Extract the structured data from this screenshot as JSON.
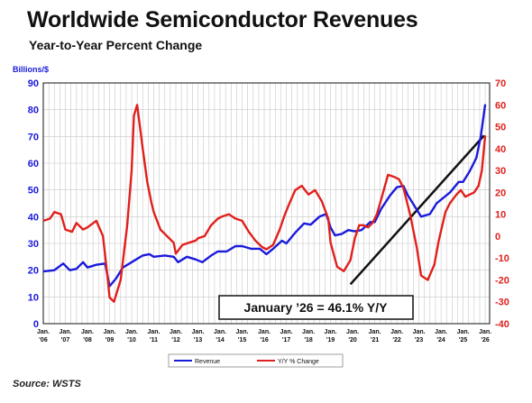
{
  "title": "Worldwide Semiconductor Revenues",
  "subtitle": "Year-to-Year Percent Change",
  "source": "Source: WSTS",
  "chart_data": {
    "type": "line",
    "left_axis_label": "Billions/$",
    "left_ylim": [
      0,
      90
    ],
    "left_ticks": [
      "0",
      "10",
      "20",
      "30",
      "40",
      "50",
      "60",
      "70",
      "80",
      "90"
    ],
    "right_ylim": [
      -40,
      70
    ],
    "right_ticks": [
      "-40",
      "-30",
      "-20",
      "-10",
      "0",
      "10",
      "20",
      "30",
      "40",
      "50",
      "60",
      "70"
    ],
    "x_ticks": [
      {
        "t": 2006.0,
        "l1": "Jan.",
        "l2": "'06"
      },
      {
        "t": 2007.0,
        "l1": "Jan.",
        "l2": "'07"
      },
      {
        "t": 2008.0,
        "l1": "Jan.",
        "l2": "'08"
      },
      {
        "t": 2009.0,
        "l1": "Jan.",
        "l2": "'09"
      },
      {
        "t": 2010.0,
        "l1": "Jan.",
        "l2": "'10"
      },
      {
        "t": 2011.0,
        "l1": "Jan.",
        "l2": "'11"
      },
      {
        "t": 2012.0,
        "l1": "Jan.",
        "l2": "'12"
      },
      {
        "t": 2013.0,
        "l1": "Jan.",
        "l2": "'13"
      },
      {
        "t": 2014.0,
        "l1": "Jan.",
        "l2": "'14"
      },
      {
        "t": 2015.0,
        "l1": "Jan.",
        "l2": "'15"
      },
      {
        "t": 2016.0,
        "l1": "Jan.",
        "l2": "'16"
      },
      {
        "t": 2017.0,
        "l1": "Jan.",
        "l2": "'17"
      },
      {
        "t": 2018.0,
        "l1": "Jan.",
        "l2": "'18"
      },
      {
        "t": 2019.0,
        "l1": "Jan.",
        "l2": "'19"
      },
      {
        "t": 2020.0,
        "l1": "Jan.",
        "l2": "'20"
      },
      {
        "t": 2021.0,
        "l1": "Jan.",
        "l2": "'21"
      },
      {
        "t": 2022.0,
        "l1": "Jan.",
        "l2": "'22"
      },
      {
        "t": 2023.0,
        "l1": "Jan.",
        "l2": "'23"
      },
      {
        "t": 2024.0,
        "l1": "Jan.",
        "l2": "'24"
      },
      {
        "t": 2025.0,
        "l1": "Jan.",
        "l2": "'25"
      },
      {
        "t": 2026.0,
        "l1": "Jan.",
        "l2": "'26"
      }
    ],
    "series": [
      {
        "name": "Revenue",
        "axis": "left",
        "color": "#1a1adb",
        "points": [
          [
            2006.0,
            19.5
          ],
          [
            2006.5,
            20
          ],
          [
            2006.9,
            22.5
          ],
          [
            2007.2,
            20
          ],
          [
            2007.5,
            20.5
          ],
          [
            2007.8,
            23
          ],
          [
            2008.0,
            21
          ],
          [
            2008.4,
            22
          ],
          [
            2008.8,
            22.5
          ],
          [
            2009.0,
            14
          ],
          [
            2009.3,
            17
          ],
          [
            2009.6,
            21
          ],
          [
            2009.9,
            22.5
          ],
          [
            2010.2,
            24
          ],
          [
            2010.5,
            25.5
          ],
          [
            2010.8,
            26
          ],
          [
            2011.0,
            25
          ],
          [
            2011.5,
            25.5
          ],
          [
            2011.9,
            25
          ],
          [
            2012.1,
            23
          ],
          [
            2012.5,
            25
          ],
          [
            2012.9,
            24
          ],
          [
            2013.2,
            23
          ],
          [
            2013.6,
            25.5
          ],
          [
            2013.9,
            27
          ],
          [
            2014.3,
            27
          ],
          [
            2014.7,
            29
          ],
          [
            2015.0,
            29
          ],
          [
            2015.4,
            28
          ],
          [
            2015.8,
            28
          ],
          [
            2016.1,
            26
          ],
          [
            2016.4,
            28
          ],
          [
            2016.8,
            31
          ],
          [
            2017.0,
            30
          ],
          [
            2017.4,
            34
          ],
          [
            2017.8,
            37.5
          ],
          [
            2018.1,
            37
          ],
          [
            2018.5,
            40
          ],
          [
            2018.8,
            41
          ],
          [
            2019.0,
            36
          ],
          [
            2019.2,
            33
          ],
          [
            2019.5,
            33.5
          ],
          [
            2019.8,
            35
          ],
          [
            2020.1,
            34.5
          ],
          [
            2020.4,
            35
          ],
          [
            2020.8,
            38
          ],
          [
            2021.0,
            38
          ],
          [
            2021.3,
            43
          ],
          [
            2021.7,
            48
          ],
          [
            2022.0,
            51
          ],
          [
            2022.3,
            51.5
          ],
          [
            2022.5,
            48
          ],
          [
            2022.8,
            44
          ],
          [
            2023.1,
            40
          ],
          [
            2023.5,
            41
          ],
          [
            2023.8,
            45
          ],
          [
            2024.1,
            47
          ],
          [
            2024.4,
            49
          ],
          [
            2024.8,
            53
          ],
          [
            2025.0,
            53
          ],
          [
            2025.3,
            57
          ],
          [
            2025.6,
            62
          ],
          [
            2025.8,
            70
          ],
          [
            2026.0,
            82
          ]
        ]
      },
      {
        "name": "Y/Y % Change",
        "axis": "right",
        "color": "#e0201c",
        "points": [
          [
            2006.0,
            7
          ],
          [
            2006.3,
            8
          ],
          [
            2006.5,
            11
          ],
          [
            2006.8,
            10
          ],
          [
            2007.0,
            3
          ],
          [
            2007.3,
            2
          ],
          [
            2007.5,
            6
          ],
          [
            2007.8,
            3
          ],
          [
            2008.0,
            4
          ],
          [
            2008.4,
            7
          ],
          [
            2008.7,
            0
          ],
          [
            2008.9,
            -18
          ],
          [
            2009.0,
            -28
          ],
          [
            2009.2,
            -30
          ],
          [
            2009.5,
            -20
          ],
          [
            2009.8,
            5
          ],
          [
            2010.0,
            30
          ],
          [
            2010.1,
            55
          ],
          [
            2010.25,
            60
          ],
          [
            2010.5,
            40
          ],
          [
            2010.7,
            25
          ],
          [
            2010.9,
            15
          ],
          [
            2011.0,
            11
          ],
          [
            2011.3,
            3
          ],
          [
            2011.6,
            0
          ],
          [
            2011.9,
            -3
          ],
          [
            2012.0,
            -8
          ],
          [
            2012.3,
            -4
          ],
          [
            2012.6,
            -3
          ],
          [
            2012.9,
            -2
          ],
          [
            2013.0,
            -1
          ],
          [
            2013.3,
            0
          ],
          [
            2013.6,
            5
          ],
          [
            2013.9,
            8
          ],
          [
            2014.1,
            9
          ],
          [
            2014.4,
            10
          ],
          [
            2014.7,
            8
          ],
          [
            2015.0,
            7
          ],
          [
            2015.3,
            2
          ],
          [
            2015.6,
            -2
          ],
          [
            2015.9,
            -5
          ],
          [
            2016.1,
            -6
          ],
          [
            2016.4,
            -4
          ],
          [
            2016.7,
            3
          ],
          [
            2016.9,
            9
          ],
          [
            2017.1,
            14
          ],
          [
            2017.4,
            21
          ],
          [
            2017.7,
            23
          ],
          [
            2018.0,
            19
          ],
          [
            2018.3,
            21
          ],
          [
            2018.6,
            16
          ],
          [
            2018.9,
            8
          ],
          [
            2019.0,
            -3
          ],
          [
            2019.3,
            -14
          ],
          [
            2019.6,
            -16
          ],
          [
            2019.9,
            -11
          ],
          [
            2020.1,
            -1
          ],
          [
            2020.3,
            5
          ],
          [
            2020.5,
            5
          ],
          [
            2020.7,
            4
          ],
          [
            2020.9,
            6
          ],
          [
            2021.1,
            10
          ],
          [
            2021.3,
            17
          ],
          [
            2021.6,
            28
          ],
          [
            2021.9,
            27
          ],
          [
            2022.1,
            26
          ],
          [
            2022.3,
            22
          ],
          [
            2022.6,
            10
          ],
          [
            2022.9,
            -5
          ],
          [
            2023.1,
            -18
          ],
          [
            2023.4,
            -20
          ],
          [
            2023.7,
            -13
          ],
          [
            2023.9,
            -2
          ],
          [
            2024.2,
            11
          ],
          [
            2024.4,
            15
          ],
          [
            2024.7,
            19
          ],
          [
            2024.9,
            21
          ],
          [
            2025.1,
            18
          ],
          [
            2025.3,
            19
          ],
          [
            2025.5,
            20
          ],
          [
            2025.7,
            23
          ],
          [
            2025.85,
            30
          ],
          [
            2026.0,
            46
          ]
        ]
      }
    ],
    "trend_line": {
      "from": [
        2019.9,
        -22
      ],
      "to": [
        2025.95,
        46
      ],
      "color": "#111111"
    },
    "annotation": "January ’26 = 46.1% Y/Y",
    "legend": {
      "position": "bottom-center",
      "items": [
        "Revenue",
        "Y/Y % Change"
      ]
    }
  }
}
